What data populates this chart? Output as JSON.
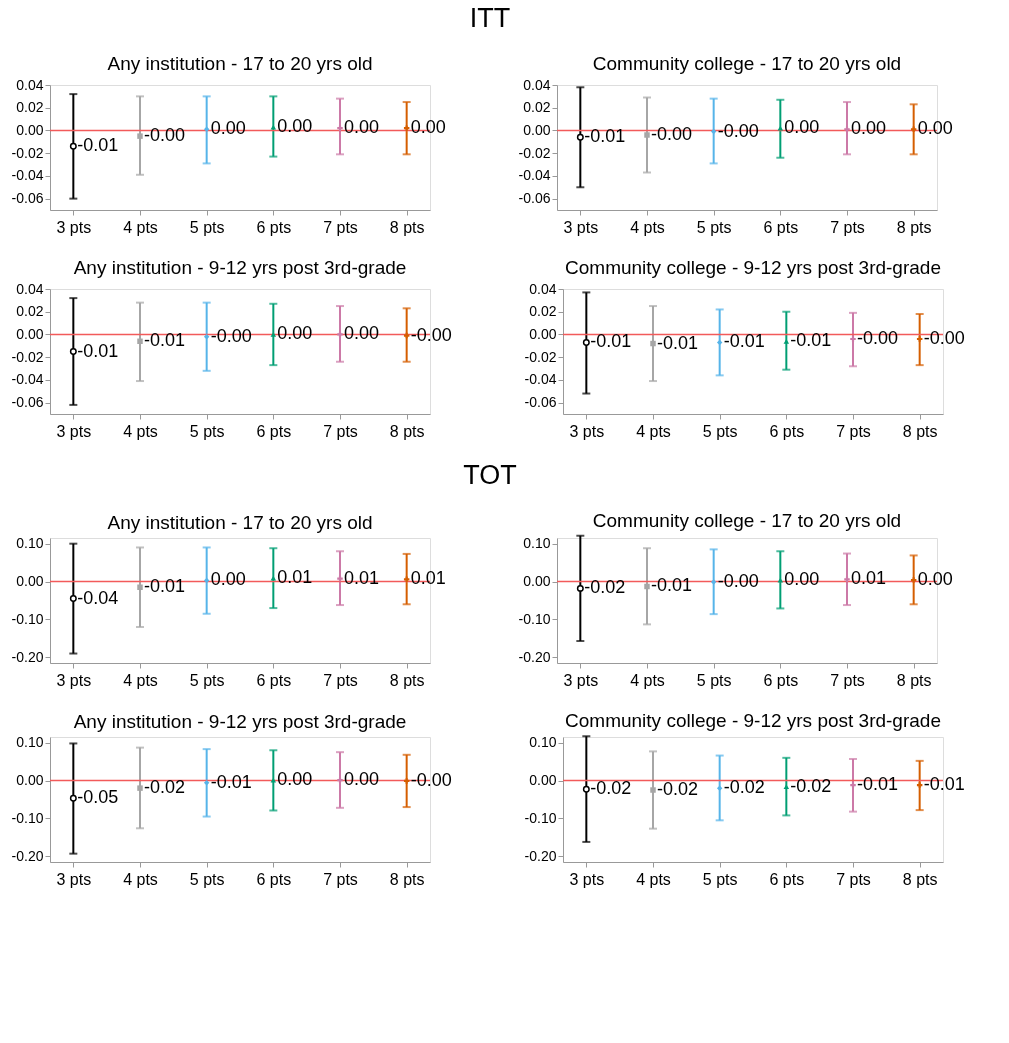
{
  "chart_data": [
    {
      "type": "other",
      "title": "ITT"
    },
    {
      "type": "scatter",
      "title": "Any institution - 17 to 20 yrs old",
      "categories": [
        "3 pts",
        "4 pts",
        "5 pts",
        "6 pts",
        "7 pts",
        "8 pts"
      ],
      "ylim": [
        -0.07,
        0.04
      ],
      "yticks": [
        {
          "value": -0.06,
          "label": "-0.06"
        },
        {
          "value": -0.04,
          "label": "-0.04"
        },
        {
          "value": -0.02,
          "label": "-0.02"
        },
        {
          "value": 0,
          "label": "0.00"
        },
        {
          "value": 0.02,
          "label": "0.02"
        },
        {
          "value": 0.04,
          "label": "0.04"
        }
      ],
      "ref_lines": [
        {
          "axis": "y",
          "value": 0,
          "color": "#f25a5a"
        }
      ],
      "series": [
        {
          "x": [
            "3 pts"
          ],
          "color": "#000000",
          "marker": "circle",
          "values": [
            -0.014
          ],
          "errors": [
            [
              -0.06,
              0.032
            ]
          ],
          "value_labels": [
            "-0.01"
          ]
        },
        {
          "x": [
            "4 pts"
          ],
          "color": "#a6a6a6",
          "marker": "square",
          "values": [
            -0.005
          ],
          "errors": [
            [
              -0.039,
              0.03
            ]
          ],
          "value_labels": [
            "-0.00"
          ]
        },
        {
          "x": [
            "5 pts"
          ],
          "color": "#56b4e9",
          "marker": "diamond",
          "values": [
            0.001
          ],
          "errors": [
            [
              -0.029,
              0.03
            ]
          ],
          "value_labels": [
            "0.00"
          ]
        },
        {
          "x": [
            "6 pts"
          ],
          "color": "#009e73",
          "marker": "triangle",
          "values": [
            0.003
          ],
          "errors": [
            [
              -0.023,
              0.03
            ]
          ],
          "value_labels": [
            "0.00"
          ]
        },
        {
          "x": [
            "7 pts"
          ],
          "color": "#cc79a7",
          "marker": "cross",
          "values": [
            0.002
          ],
          "errors": [
            [
              -0.021,
              0.028
            ]
          ],
          "value_labels": [
            "0.00"
          ]
        },
        {
          "x": [
            "8 pts"
          ],
          "color": "#d55e00",
          "marker": "cross",
          "values": [
            0.002
          ],
          "errors": [
            [
              -0.021,
              0.025
            ]
          ],
          "value_labels": [
            "0.00"
          ]
        }
      ]
    },
    {
      "type": "scatter",
      "title": "Community college - 17 to 20 yrs old",
      "categories": [
        "3 pts",
        "4 pts",
        "5 pts",
        "6 pts",
        "7 pts",
        "8 pts"
      ],
      "ylim": [
        -0.07,
        0.04
      ],
      "yticks": [
        {
          "value": -0.06,
          "label": "-0.06"
        },
        {
          "value": -0.04,
          "label": "-0.04"
        },
        {
          "value": -0.02,
          "label": "-0.02"
        },
        {
          "value": 0,
          "label": "0.00"
        },
        {
          "value": 0.02,
          "label": "0.02"
        },
        {
          "value": 0.04,
          "label": "0.04"
        }
      ],
      "ref_lines": [
        {
          "axis": "y",
          "value": 0,
          "color": "#f25a5a"
        }
      ],
      "series": [
        {
          "x": [
            "3 pts"
          ],
          "color": "#000000",
          "marker": "circle",
          "values": [
            -0.006
          ],
          "errors": [
            [
              -0.05,
              0.038
            ]
          ],
          "value_labels": [
            "-0.01"
          ]
        },
        {
          "x": [
            "4 pts"
          ],
          "color": "#a6a6a6",
          "marker": "square",
          "values": [
            -0.004
          ],
          "errors": [
            [
              -0.037,
              0.029
            ]
          ],
          "value_labels": [
            "-0.00"
          ]
        },
        {
          "x": [
            "5 pts"
          ],
          "color": "#56b4e9",
          "marker": "diamond",
          "values": [
            -0.001
          ],
          "errors": [
            [
              -0.029,
              0.028
            ]
          ],
          "value_labels": [
            "-0.00"
          ]
        },
        {
          "x": [
            "6 pts"
          ],
          "color": "#009e73",
          "marker": "triangle",
          "values": [
            0.002
          ],
          "errors": [
            [
              -0.024,
              0.027
            ]
          ],
          "value_labels": [
            "0.00"
          ]
        },
        {
          "x": [
            "7 pts"
          ],
          "color": "#cc79a7",
          "marker": "cross",
          "values": [
            0.001
          ],
          "errors": [
            [
              -0.021,
              0.025
            ]
          ],
          "value_labels": [
            "0.00"
          ]
        },
        {
          "x": [
            "8 pts"
          ],
          "color": "#d55e00",
          "marker": "cross",
          "values": [
            0.001
          ],
          "errors": [
            [
              -0.021,
              0.023
            ]
          ],
          "value_labels": [
            "0.00"
          ]
        }
      ]
    },
    {
      "type": "scatter",
      "title": "Any institution - 9-12 yrs post 3rd-grade",
      "categories": [
        "3 pts",
        "4 pts",
        "5 pts",
        "6 pts",
        "7 pts",
        "8 pts"
      ],
      "ylim": [
        -0.07,
        0.04
      ],
      "yticks": [
        {
          "value": -0.06,
          "label": "-0.06"
        },
        {
          "value": -0.04,
          "label": "-0.04"
        },
        {
          "value": -0.02,
          "label": "-0.02"
        },
        {
          "value": 0,
          "label": "0.00"
        },
        {
          "value": 0.02,
          "label": "0.02"
        },
        {
          "value": 0.04,
          "label": "0.04"
        }
      ],
      "ref_lines": [
        {
          "axis": "y",
          "value": 0,
          "color": "#f25a5a"
        }
      ],
      "series": [
        {
          "x": [
            "3 pts"
          ],
          "color": "#000000",
          "marker": "circle",
          "values": [
            -0.015
          ],
          "errors": [
            [
              -0.062,
              0.032
            ]
          ],
          "value_labels": [
            "-0.01"
          ]
        },
        {
          "x": [
            "4 pts"
          ],
          "color": "#a6a6a6",
          "marker": "square",
          "values": [
            -0.006
          ],
          "errors": [
            [
              -0.041,
              0.028
            ]
          ],
          "value_labels": [
            "-0.01"
          ]
        },
        {
          "x": [
            "5 pts"
          ],
          "color": "#56b4e9",
          "marker": "diamond",
          "values": [
            -0.002
          ],
          "errors": [
            [
              -0.032,
              0.028
            ]
          ],
          "value_labels": [
            "-0.00"
          ]
        },
        {
          "x": [
            "6 pts"
          ],
          "color": "#009e73",
          "marker": "triangle",
          "values": [
            0.0
          ],
          "errors": [
            [
              -0.027,
              0.027
            ]
          ],
          "value_labels": [
            "0.00"
          ]
        },
        {
          "x": [
            "7 pts"
          ],
          "color": "#cc79a7",
          "marker": "cross",
          "values": [
            0.0
          ],
          "errors": [
            [
              -0.024,
              0.025
            ]
          ],
          "value_labels": [
            "0.00"
          ]
        },
        {
          "x": [
            "8 pts"
          ],
          "color": "#d55e00",
          "marker": "cross",
          "values": [
            -0.001
          ],
          "errors": [
            [
              -0.024,
              0.023
            ]
          ],
          "value_labels": [
            "-0.00"
          ]
        }
      ]
    },
    {
      "type": "scatter",
      "title": "Community college - 9-12 yrs post 3rd-grade",
      "categories": [
        "3 pts",
        "4 pts",
        "5 pts",
        "6 pts",
        "7 pts",
        "8 pts"
      ],
      "ylim": [
        -0.07,
        0.04
      ],
      "yticks": [
        {
          "value": -0.06,
          "label": "-0.06"
        },
        {
          "value": -0.04,
          "label": "-0.04"
        },
        {
          "value": -0.02,
          "label": "-0.02"
        },
        {
          "value": 0,
          "label": "0.00"
        },
        {
          "value": 0.02,
          "label": "0.02"
        },
        {
          "value": 0.04,
          "label": "0.04"
        }
      ],
      "ref_lines": [
        {
          "axis": "y",
          "value": 0,
          "color": "#f25a5a"
        }
      ],
      "series": [
        {
          "x": [
            "3 pts"
          ],
          "color": "#000000",
          "marker": "circle",
          "values": [
            -0.007
          ],
          "errors": [
            [
              -0.052,
              0.037
            ]
          ],
          "value_labels": [
            "-0.01"
          ]
        },
        {
          "x": [
            "4 pts"
          ],
          "color": "#a6a6a6",
          "marker": "square",
          "values": [
            -0.008
          ],
          "errors": [
            [
              -0.041,
              0.025
            ]
          ],
          "value_labels": [
            "-0.01"
          ]
        },
        {
          "x": [
            "5 pts"
          ],
          "color": "#56b4e9",
          "marker": "diamond",
          "values": [
            -0.007
          ],
          "errors": [
            [
              -0.036,
              0.022
            ]
          ],
          "value_labels": [
            "-0.01"
          ]
        },
        {
          "x": [
            "6 pts"
          ],
          "color": "#009e73",
          "marker": "triangle",
          "values": [
            -0.006
          ],
          "errors": [
            [
              -0.031,
              0.02
            ]
          ],
          "value_labels": [
            "-0.01"
          ]
        },
        {
          "x": [
            "7 pts"
          ],
          "color": "#cc79a7",
          "marker": "cross",
          "values": [
            -0.004
          ],
          "errors": [
            [
              -0.028,
              0.019
            ]
          ],
          "value_labels": [
            "-0.00"
          ]
        },
        {
          "x": [
            "8 pts"
          ],
          "color": "#d55e00",
          "marker": "cross",
          "values": [
            -0.004
          ],
          "errors": [
            [
              -0.027,
              0.018
            ]
          ],
          "value_labels": [
            "-0.00"
          ]
        }
      ]
    },
    {
      "type": "other",
      "title": "TOT"
    },
    {
      "type": "scatter",
      "title": "Any institution - 17 to 20 yrs old",
      "categories": [
        "3 pts",
        "4 pts",
        "5 pts",
        "6 pts",
        "7 pts",
        "8 pts"
      ],
      "ylim": [
        -0.215,
        0.115
      ],
      "yticks": [
        {
          "value": -0.2,
          "label": "-0.20"
        },
        {
          "value": -0.1,
          "label": "-0.10"
        },
        {
          "value": 0,
          "label": "0.00"
        },
        {
          "value": 0.1,
          "label": "0.10"
        }
      ],
      "ref_lines": [
        {
          "axis": "y",
          "value": 0,
          "color": "#f25a5a"
        }
      ],
      "series": [
        {
          "x": [
            "3 pts"
          ],
          "color": "#000000",
          "marker": "circle",
          "values": [
            -0.045
          ],
          "errors": [
            [
              -0.19,
              0.1
            ]
          ],
          "value_labels": [
            "-0.04"
          ]
        },
        {
          "x": [
            "4 pts"
          ],
          "color": "#a6a6a6",
          "marker": "square",
          "values": [
            -0.015
          ],
          "errors": [
            [
              -0.12,
              0.09
            ]
          ],
          "value_labels": [
            "-0.01"
          ]
        },
        {
          "x": [
            "5 pts"
          ],
          "color": "#56b4e9",
          "marker": "diamond",
          "values": [
            0.003
          ],
          "errors": [
            [
              -0.085,
              0.09
            ]
          ],
          "value_labels": [
            "0.00"
          ]
        },
        {
          "x": [
            "6 pts"
          ],
          "color": "#009e73",
          "marker": "triangle",
          "values": [
            0.009
          ],
          "errors": [
            [
              -0.07,
              0.088
            ]
          ],
          "value_labels": [
            "0.01"
          ]
        },
        {
          "x": [
            "7 pts"
          ],
          "color": "#cc79a7",
          "marker": "cross",
          "values": [
            0.008
          ],
          "errors": [
            [
              -0.062,
              0.08
            ]
          ],
          "value_labels": [
            "0.01"
          ]
        },
        {
          "x": [
            "8 pts"
          ],
          "color": "#d55e00",
          "marker": "cross",
          "values": [
            0.006
          ],
          "errors": [
            [
              -0.06,
              0.073
            ]
          ],
          "value_labels": [
            "0.01"
          ]
        }
      ]
    },
    {
      "type": "scatter",
      "title": "Community college - 17 to 20 yrs old",
      "categories": [
        "3 pts",
        "4 pts",
        "5 pts",
        "6 pts",
        "7 pts",
        "8 pts"
      ],
      "ylim": [
        -0.215,
        0.115
      ],
      "yticks": [
        {
          "value": -0.2,
          "label": "-0.20"
        },
        {
          "value": -0.1,
          "label": "-0.10"
        },
        {
          "value": 0,
          "label": "0.00"
        },
        {
          "value": 0.1,
          "label": "0.10"
        }
      ],
      "ref_lines": [
        {
          "axis": "y",
          "value": 0,
          "color": "#f25a5a"
        }
      ],
      "series": [
        {
          "x": [
            "3 pts"
          ],
          "color": "#000000",
          "marker": "circle",
          "values": [
            -0.018
          ],
          "errors": [
            [
              -0.157,
              0.121
            ]
          ],
          "value_labels": [
            "-0.02"
          ]
        },
        {
          "x": [
            "4 pts"
          ],
          "color": "#a6a6a6",
          "marker": "square",
          "values": [
            -0.013
          ],
          "errors": [
            [
              -0.113,
              0.088
            ]
          ],
          "value_labels": [
            "-0.01"
          ]
        },
        {
          "x": [
            "5 pts"
          ],
          "color": "#56b4e9",
          "marker": "diamond",
          "values": [
            -0.001
          ],
          "errors": [
            [
              -0.086,
              0.085
            ]
          ],
          "value_labels": [
            "-0.00"
          ]
        },
        {
          "x": [
            "6 pts"
          ],
          "color": "#009e73",
          "marker": "triangle",
          "values": [
            0.004
          ],
          "errors": [
            [
              -0.071,
              0.08
            ]
          ],
          "value_labels": [
            "0.00"
          ]
        },
        {
          "x": [
            "7 pts"
          ],
          "color": "#cc79a7",
          "marker": "cross",
          "values": [
            0.006
          ],
          "errors": [
            [
              -0.062,
              0.074
            ]
          ],
          "value_labels": [
            "0.01"
          ]
        },
        {
          "x": [
            "8 pts"
          ],
          "color": "#d55e00",
          "marker": "cross",
          "values": [
            0.004
          ],
          "errors": [
            [
              -0.06,
              0.069
            ]
          ],
          "value_labels": [
            "0.00"
          ]
        }
      ]
    },
    {
      "type": "scatter",
      "title": "Any institution - 9-12 yrs post 3rd-grade",
      "categories": [
        "3 pts",
        "4 pts",
        "5 pts",
        "6 pts",
        "7 pts",
        "8 pts"
      ],
      "ylim": [
        -0.215,
        0.115
      ],
      "yticks": [
        {
          "value": -0.2,
          "label": "-0.20"
        },
        {
          "value": -0.1,
          "label": "-0.10"
        },
        {
          "value": 0,
          "label": "0.00"
        },
        {
          "value": 0.1,
          "label": "0.10"
        }
      ],
      "ref_lines": [
        {
          "axis": "y",
          "value": 0,
          "color": "#f25a5a"
        }
      ],
      "series": [
        {
          "x": [
            "3 pts"
          ],
          "color": "#000000",
          "marker": "circle",
          "values": [
            -0.047
          ],
          "errors": [
            [
              -0.193,
              0.098
            ]
          ],
          "value_labels": [
            "-0.05"
          ]
        },
        {
          "x": [
            "4 pts"
          ],
          "color": "#a6a6a6",
          "marker": "square",
          "values": [
            -0.02
          ],
          "errors": [
            [
              -0.126,
              0.087
            ]
          ],
          "value_labels": [
            "-0.02"
          ]
        },
        {
          "x": [
            "5 pts"
          ],
          "color": "#56b4e9",
          "marker": "diamond",
          "values": [
            -0.006
          ],
          "errors": [
            [
              -0.095,
              0.083
            ]
          ],
          "value_labels": [
            "-0.01"
          ]
        },
        {
          "x": [
            "6 pts"
          ],
          "color": "#009e73",
          "marker": "triangle",
          "values": [
            0.001
          ],
          "errors": [
            [
              -0.079,
              0.08
            ]
          ],
          "value_labels": [
            "0.00"
          ]
        },
        {
          "x": [
            "7 pts"
          ],
          "color": "#cc79a7",
          "marker": "cross",
          "values": [
            0.001
          ],
          "errors": [
            [
              -0.072,
              0.075
            ]
          ],
          "value_labels": [
            "0.00"
          ]
        },
        {
          "x": [
            "8 pts"
          ],
          "color": "#d55e00",
          "marker": "cross",
          "values": [
            -0.001
          ],
          "errors": [
            [
              -0.07,
              0.068
            ]
          ],
          "value_labels": [
            "-0.00"
          ]
        }
      ]
    },
    {
      "type": "scatter",
      "title": "Community college - 9-12 yrs post 3rd-grade",
      "categories": [
        "3 pts",
        "4 pts",
        "5 pts",
        "6 pts",
        "7 pts",
        "8 pts"
      ],
      "ylim": [
        -0.215,
        0.115
      ],
      "yticks": [
        {
          "value": -0.2,
          "label": "-0.20"
        },
        {
          "value": -0.1,
          "label": "-0.10"
        },
        {
          "value": 0,
          "label": "0.00"
        },
        {
          "value": 0.1,
          "label": "0.10"
        }
      ],
      "ref_lines": [
        {
          "axis": "y",
          "value": 0,
          "color": "#f25a5a"
        }
      ],
      "series": [
        {
          "x": [
            "3 pts"
          ],
          "color": "#000000",
          "marker": "circle",
          "values": [
            -0.023
          ],
          "errors": [
            [
              -0.162,
              0.117
            ]
          ],
          "value_labels": [
            "-0.02"
          ]
        },
        {
          "x": [
            "4 pts"
          ],
          "color": "#a6a6a6",
          "marker": "square",
          "values": [
            -0.025
          ],
          "errors": [
            [
              -0.127,
              0.077
            ]
          ],
          "value_labels": [
            "-0.02"
          ]
        },
        {
          "x": [
            "5 pts"
          ],
          "color": "#56b4e9",
          "marker": "diamond",
          "values": [
            -0.02
          ],
          "errors": [
            [
              -0.105,
              0.066
            ]
          ],
          "value_labels": [
            "-0.02"
          ]
        },
        {
          "x": [
            "6 pts"
          ],
          "color": "#009e73",
          "marker": "triangle",
          "values": [
            -0.016
          ],
          "errors": [
            [
              -0.092,
              0.06
            ]
          ],
          "value_labels": [
            "-0.02"
          ]
        },
        {
          "x": [
            "7 pts"
          ],
          "color": "#cc79a7",
          "marker": "cross",
          "values": [
            -0.012
          ],
          "errors": [
            [
              -0.082,
              0.057
            ]
          ],
          "value_labels": [
            "-0.01"
          ]
        },
        {
          "x": [
            "8 pts"
          ],
          "color": "#d55e00",
          "marker": "cross",
          "values": [
            -0.012
          ],
          "errors": [
            [
              -0.078,
              0.052
            ]
          ],
          "value_labels": [
            "-0.01"
          ]
        }
      ]
    }
  ]
}
